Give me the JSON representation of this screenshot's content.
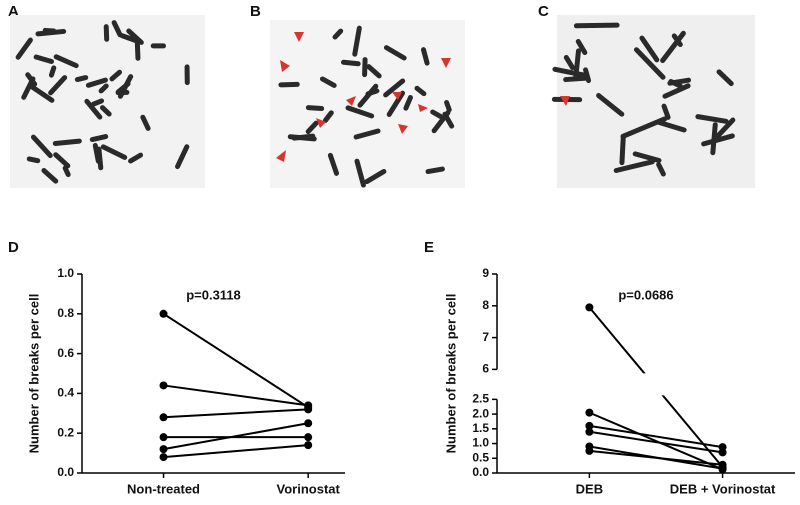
{
  "panels": [
    {
      "label": "A"
    },
    {
      "label": "B"
    },
    {
      "label": "C"
    }
  ],
  "chart_data": [
    {
      "type": "paired",
      "panel": "D",
      "annotation": "p=0.3118",
      "y_label": "Number of breaks per cell",
      "categories": [
        "Non-treated",
        "Vorinostat"
      ],
      "color": "#000000",
      "ylim": [
        0,
        1.0
      ],
      "yticks": [
        {
          "value": 0,
          "label": "0.0"
        },
        0.2,
        0.4,
        0.6,
        0.8,
        {
          "value": 1.0,
          "label": "1.0"
        }
      ],
      "series": [
        {
          "values": [
            0.8,
            0.33
          ]
        },
        {
          "values": [
            0.44,
            0.34
          ]
        },
        {
          "values": [
            0.28,
            0.32
          ]
        },
        {
          "values": [
            0.18,
            0.18
          ]
        },
        {
          "values": [
            0.12,
            0.25
          ]
        },
        {
          "values": [
            0.08,
            0.14
          ]
        }
      ]
    },
    {
      "type": "paired",
      "panel": "E",
      "annotation": "p=0.0686",
      "y_label": "Number of breaks per cell",
      "categories": [
        "DEB",
        "DEB + Vorinostat"
      ],
      "color": "#000000",
      "ylim": [
        0,
        9
      ],
      "ybreak": [
        2.5,
        6
      ],
      "yticks": [
        {
          "value": 0,
          "label": "0.0"
        },
        0.5,
        {
          "value": 1.0,
          "label": "1.0"
        },
        1.5,
        {
          "value": 2.0,
          "label": "2.0"
        },
        2.5,
        6,
        7,
        8,
        9
      ],
      "series": [
        {
          "values": [
            7.95,
            0.2
          ]
        },
        {
          "values": [
            2.05,
            0.12
          ]
        },
        {
          "values": [
            1.6,
            0.88
          ]
        },
        {
          "values": [
            1.4,
            0.7
          ]
        },
        {
          "values": [
            0.9,
            0.15
          ]
        },
        {
          "values": [
            0.75,
            0.28
          ]
        }
      ]
    }
  ]
}
